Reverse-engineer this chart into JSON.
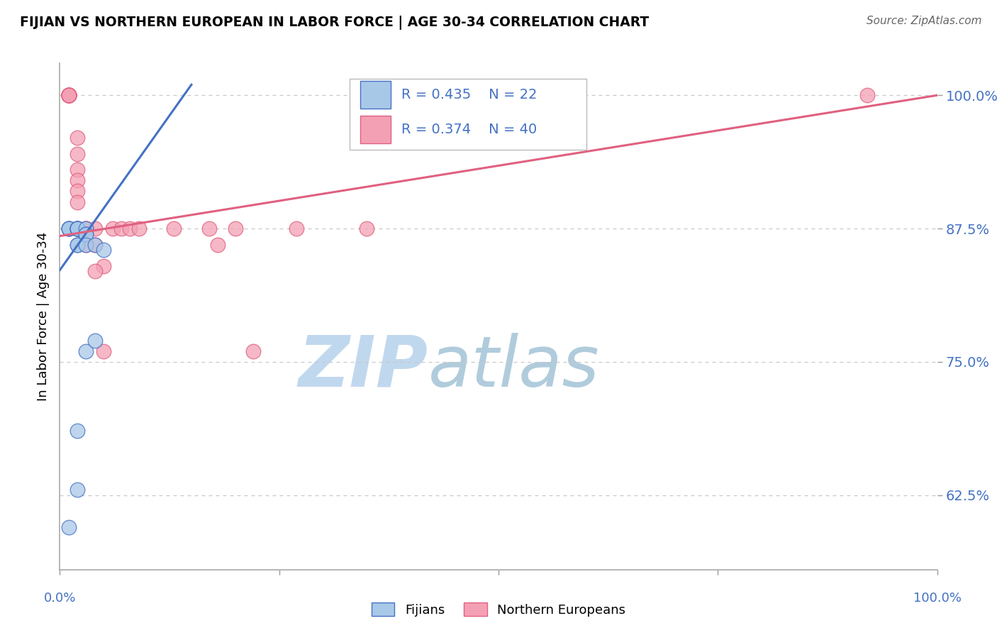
{
  "title": "FIJIAN VS NORTHERN EUROPEAN IN LABOR FORCE | AGE 30-34 CORRELATION CHART",
  "source": "Source: ZipAtlas.com",
  "ylabel": "In Labor Force | Age 30-34",
  "ytick_labels": [
    "100.0%",
    "87.5%",
    "75.0%",
    "62.5%"
  ],
  "ytick_values": [
    1.0,
    0.875,
    0.75,
    0.625
  ],
  "xmin": 0.0,
  "xmax": 1.0,
  "ymin": 0.555,
  "ymax": 1.03,
  "r_fijian": 0.435,
  "n_fijian": 22,
  "r_northern": 0.374,
  "n_northern": 40,
  "color_fijian": "#A8C8E8",
  "color_northern": "#F4A0B4",
  "color_fijian_line": "#4472C4",
  "color_northern_line": "#E06080",
  "color_text_blue": "#4472C4",
  "color_grid": "#C8C8C8",
  "watermark_color": "#C8DCF0",
  "fijian_x": [
    0.01,
    0.01,
    0.01,
    0.01,
    0.02,
    0.02,
    0.02,
    0.02,
    0.02,
    0.02,
    0.02,
    0.03,
    0.03,
    0.03,
    0.03,
    0.04,
    0.05,
    0.02,
    0.03,
    0.04,
    0.01,
    0.02
  ],
  "fijian_y": [
    0.875,
    0.875,
    0.875,
    0.875,
    0.875,
    0.875,
    0.875,
    0.875,
    0.875,
    0.86,
    0.86,
    0.875,
    0.87,
    0.87,
    0.86,
    0.86,
    0.855,
    0.63,
    0.76,
    0.77,
    0.595,
    0.685
  ],
  "northern_x": [
    0.01,
    0.01,
    0.01,
    0.01,
    0.01,
    0.01,
    0.01,
    0.01,
    0.01,
    0.01,
    0.02,
    0.02,
    0.02,
    0.02,
    0.02,
    0.02,
    0.03,
    0.03,
    0.04,
    0.04,
    0.05,
    0.06,
    0.07,
    0.08,
    0.09,
    0.13,
    0.17,
    0.2,
    0.02,
    0.02,
    0.02,
    0.03,
    0.03,
    0.04,
    0.05,
    0.92,
    0.35,
    0.27,
    0.22,
    0.18
  ],
  "northern_y": [
    1.0,
    1.0,
    1.0,
    1.0,
    1.0,
    1.0,
    1.0,
    1.0,
    1.0,
    1.0,
    0.96,
    0.945,
    0.93,
    0.92,
    0.91,
    0.9,
    0.875,
    0.875,
    0.875,
    0.86,
    0.84,
    0.875,
    0.875,
    0.875,
    0.875,
    0.875,
    0.875,
    0.875,
    0.875,
    0.875,
    0.875,
    0.875,
    0.86,
    0.835,
    0.76,
    1.0,
    0.875,
    0.875,
    0.76,
    0.86
  ],
  "legend_R_fijian": "R = 0.435",
  "legend_N_fijian": "N = 22",
  "legend_R_northern": "R = 0.374",
  "legend_N_northern": "N = 40",
  "legend_label_fijian": "Fijians",
  "legend_label_northern": "Northern Europeans",
  "fijian_trend_x": [
    0.0,
    0.15
  ],
  "fijian_trend_y": [
    0.836,
    1.01
  ],
  "northern_trend_x": [
    0.0,
    1.0
  ],
  "northern_trend_y": [
    0.868,
    1.0
  ]
}
